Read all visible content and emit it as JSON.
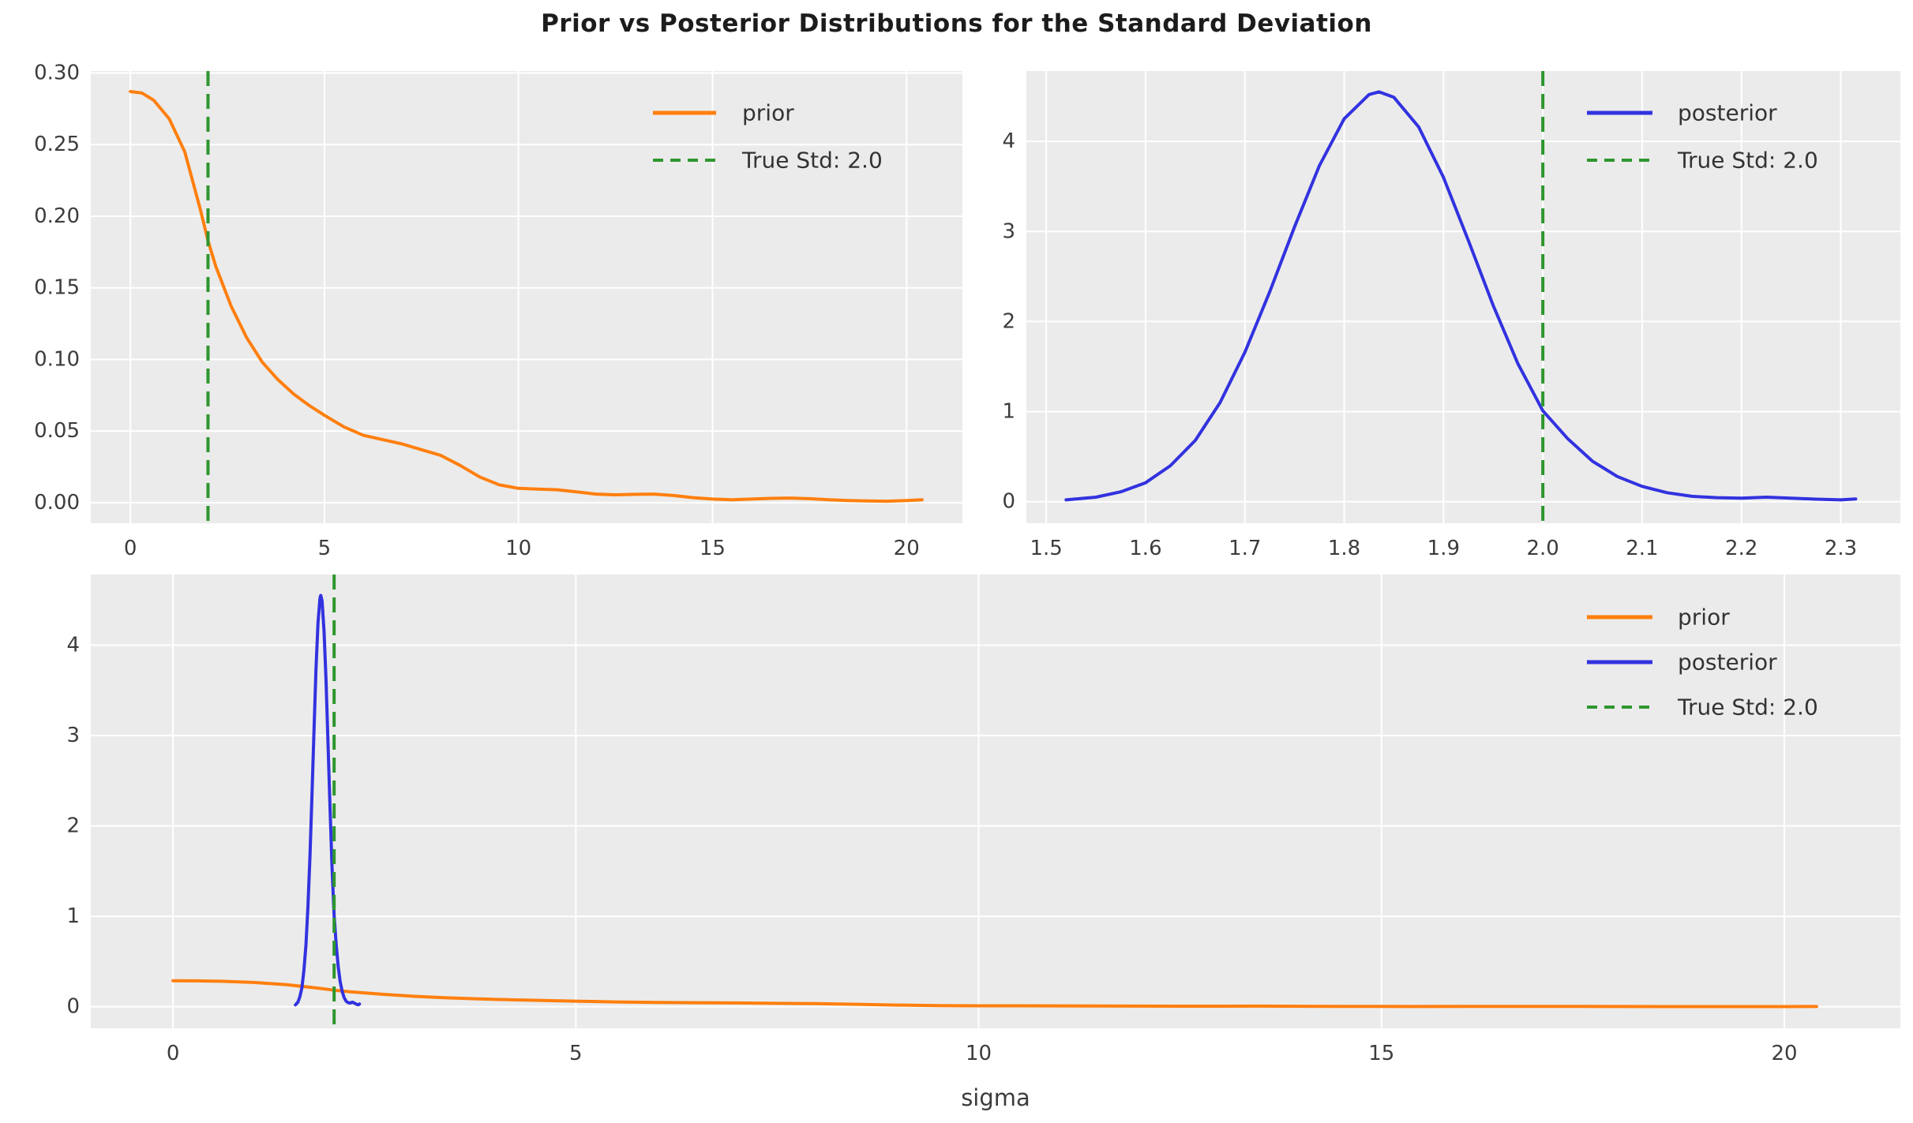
{
  "title": "Prior vs Posterior Distributions for the Standard Deviation",
  "colors": {
    "prior": "#ff7f0e",
    "posterior": "#3232e0",
    "true_std": "#2e962e",
    "plot_background": "#ebebeb",
    "grid": "#ffffff",
    "tick_text": "#3c3c3c",
    "title_text": "#1c1c1c"
  },
  "chart_data": {
    "type": "line",
    "title": "Prior vs Posterior Distributions for the Standard Deviation",
    "true_std_value": 2.0,
    "series": [
      {
        "name": "prior",
        "color_key": "prior",
        "points": [
          [
            0,
            0.287
          ],
          [
            0.3,
            0.286
          ],
          [
            0.6,
            0.281
          ],
          [
            1.0,
            0.268
          ],
          [
            1.4,
            0.245
          ],
          [
            1.8,
            0.205
          ],
          [
            2.0,
            0.183
          ],
          [
            2.2,
            0.165
          ],
          [
            2.6,
            0.137
          ],
          [
            3.0,
            0.115
          ],
          [
            3.4,
            0.098
          ],
          [
            3.8,
            0.086
          ],
          [
            4.2,
            0.076
          ],
          [
            4.6,
            0.068
          ],
          [
            5.0,
            0.061
          ],
          [
            5.5,
            0.053
          ],
          [
            6.0,
            0.047
          ],
          [
            6.5,
            0.044
          ],
          [
            7.0,
            0.041
          ],
          [
            7.5,
            0.037
          ],
          [
            8.0,
            0.033
          ],
          [
            8.5,
            0.026
          ],
          [
            9.0,
            0.018
          ],
          [
            9.5,
            0.0125
          ],
          [
            10.0,
            0.01
          ],
          [
            10.5,
            0.0095
          ],
          [
            11.0,
            0.009
          ],
          [
            11.5,
            0.0075
          ],
          [
            12.0,
            0.006
          ],
          [
            12.5,
            0.0055
          ],
          [
            13.0,
            0.0058
          ],
          [
            13.5,
            0.006
          ],
          [
            14.0,
            0.005
          ],
          [
            14.5,
            0.0035
          ],
          [
            15.0,
            0.0025
          ],
          [
            15.5,
            0.002
          ],
          [
            16.0,
            0.0025
          ],
          [
            16.5,
            0.003
          ],
          [
            17.0,
            0.0032
          ],
          [
            17.5,
            0.0028
          ],
          [
            18.0,
            0.002
          ],
          [
            18.5,
            0.0015
          ],
          [
            19.0,
            0.0012
          ],
          [
            19.5,
            0.001
          ],
          [
            20.0,
            0.0015
          ],
          [
            20.4,
            0.002
          ]
        ]
      },
      {
        "name": "posterior",
        "color_key": "posterior",
        "points": [
          [
            1.52,
            0.02
          ],
          [
            1.55,
            0.05
          ],
          [
            1.575,
            0.11
          ],
          [
            1.6,
            0.21
          ],
          [
            1.625,
            0.4
          ],
          [
            1.65,
            0.68
          ],
          [
            1.675,
            1.1
          ],
          [
            1.7,
            1.66
          ],
          [
            1.725,
            2.33
          ],
          [
            1.75,
            3.05
          ],
          [
            1.775,
            3.73
          ],
          [
            1.8,
            4.25
          ],
          [
            1.825,
            4.52
          ],
          [
            1.835,
            4.55
          ],
          [
            1.85,
            4.49
          ],
          [
            1.875,
            4.16
          ],
          [
            1.9,
            3.6
          ],
          [
            1.925,
            2.9
          ],
          [
            1.95,
            2.18
          ],
          [
            1.975,
            1.53
          ],
          [
            2.0,
            1.01
          ],
          [
            2.025,
            0.7
          ],
          [
            2.05,
            0.45
          ],
          [
            2.075,
            0.28
          ],
          [
            2.1,
            0.17
          ],
          [
            2.125,
            0.1
          ],
          [
            2.15,
            0.06
          ],
          [
            2.175,
            0.045
          ],
          [
            2.2,
            0.04
          ],
          [
            2.225,
            0.05
          ],
          [
            2.25,
            0.04
          ],
          [
            2.275,
            0.028
          ],
          [
            2.3,
            0.02
          ],
          [
            2.315,
            0.03
          ]
        ]
      }
    ],
    "subplots": [
      {
        "id": "plot-prior",
        "series": [
          "prior"
        ],
        "xlim": [
          -1.02,
          21.44
        ],
        "ylim": [
          -0.01435,
          0.30135
        ],
        "xticks": [
          0,
          5,
          10,
          15,
          20
        ],
        "xtick_labels": [
          "0",
          "5",
          "10",
          "15",
          "20"
        ],
        "yticks": [
          0.0,
          0.05,
          0.1,
          0.15,
          0.2,
          0.25,
          0.3
        ],
        "ytick_labels": [
          "0.00",
          "0.05",
          "0.10",
          "0.15",
          "0.20",
          "0.25",
          "0.30"
        ],
        "vline": 2.0,
        "xlabel": "",
        "legend": [
          {
            "label": "prior",
            "color_key": "prior",
            "dashed": false
          },
          {
            "label": "True Std: 2.0",
            "color_key": "true_std",
            "dashed": true
          }
        ]
      },
      {
        "id": "plot-posterior",
        "series": [
          "posterior"
        ],
        "xlim": [
          1.48,
          2.36
        ],
        "ylim": [
          -0.239,
          4.781
        ],
        "xticks": [
          1.5,
          1.6,
          1.7,
          1.8,
          1.9,
          2.0,
          2.1,
          2.2,
          2.3
        ],
        "xtick_labels": [
          "1.5",
          "1.6",
          "1.7",
          "1.8",
          "1.9",
          "2.0",
          "2.1",
          "2.2",
          "2.3"
        ],
        "yticks": [
          0,
          1,
          2,
          3,
          4
        ],
        "ytick_labels": [
          "0",
          "1",
          "2",
          "3",
          "4"
        ],
        "vline": 2.0,
        "xlabel": "",
        "legend": [
          {
            "label": "posterior",
            "color_key": "posterior",
            "dashed": false
          },
          {
            "label": "True Std: 2.0",
            "color_key": "true_std",
            "dashed": true
          }
        ]
      },
      {
        "id": "plot-combined",
        "series": [
          "prior",
          "posterior"
        ],
        "xlim": [
          -1.02,
          21.44
        ],
        "ylim": [
          -0.239,
          4.781
        ],
        "xticks": [
          0,
          5,
          10,
          15,
          20
        ],
        "xtick_labels": [
          "0",
          "5",
          "10",
          "15",
          "20"
        ],
        "yticks": [
          0,
          1,
          2,
          3,
          4
        ],
        "ytick_labels": [
          "0",
          "1",
          "2",
          "3",
          "4"
        ],
        "vline": 2.0,
        "xlabel": "sigma",
        "legend": [
          {
            "label": "prior",
            "color_key": "prior",
            "dashed": false
          },
          {
            "label": "posterior",
            "color_key": "posterior",
            "dashed": false
          },
          {
            "label": "True Std: 2.0",
            "color_key": "true_std",
            "dashed": true
          }
        ]
      }
    ]
  }
}
